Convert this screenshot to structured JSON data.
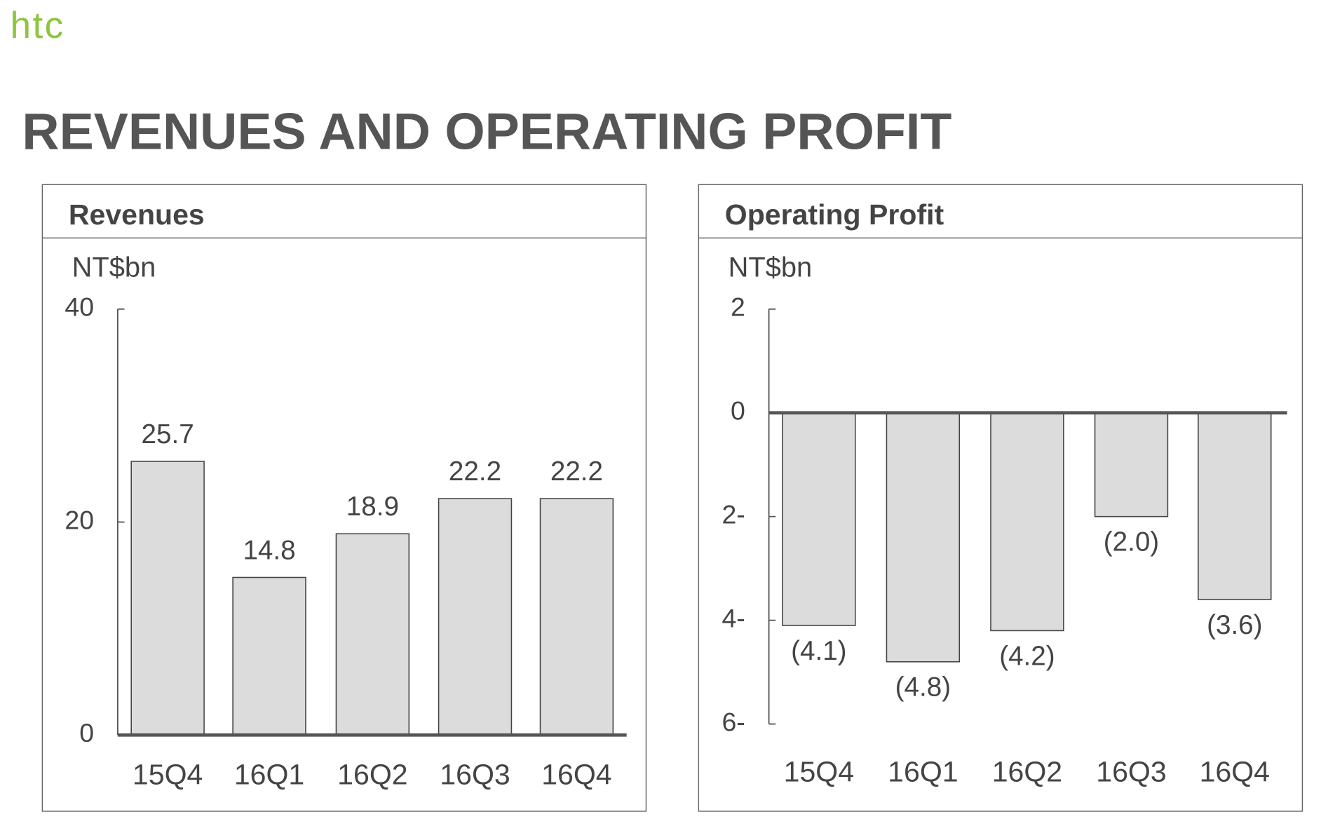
{
  "logo": "htc",
  "title": "REVENUES AND OPERATING PROFIT",
  "chart_data": [
    {
      "type": "bar",
      "title": "Revenues",
      "y_label": "NT$bn",
      "categories": [
        "15Q4",
        "16Q1",
        "16Q2",
        "16Q3",
        "16Q4"
      ],
      "values": [
        25.7,
        14.8,
        18.9,
        22.2,
        22.2
      ],
      "color": "#dcdcdc",
      "ylim": [
        0,
        40
      ],
      "yticks": [
        0,
        20,
        40
      ]
    },
    {
      "type": "bar",
      "title": "Operating Profit",
      "y_label": "NT$bn",
      "categories": [
        "15Q4",
        "16Q1",
        "16Q2",
        "16Q3",
        "16Q4"
      ],
      "values": [
        -4.1,
        -4.8,
        -4.2,
        -2.0,
        -3.6
      ],
      "value_labels": [
        "(4.1)",
        "(4.8)",
        "(4.2)",
        "(2.0)",
        "(3.6)"
      ],
      "color": "#dcdcdc",
      "ylim": [
        -6,
        2
      ],
      "yticks": [
        {
          "value": -6,
          "label": "6-"
        },
        {
          "value": -4,
          "label": "4-"
        },
        {
          "value": -2,
          "label": "2-"
        },
        0,
        2
      ]
    }
  ]
}
